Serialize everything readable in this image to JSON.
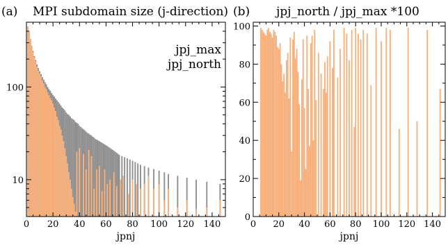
{
  "chart_data": [
    {
      "type": "bar",
      "panel_label": "(a)",
      "title": "MPI subdomain size (j-direction)",
      "xlabel": "jpnj",
      "ylabel": "",
      "yscale": "log",
      "xlim": [
        0,
        150
      ],
      "ylim": [
        4,
        500
      ],
      "xticks": [
        0,
        20,
        40,
        60,
        80,
        100,
        120,
        140
      ],
      "yticks": [
        10,
        100
      ],
      "legend_position": "top-right",
      "colors": {
        "jpj_max": "#8f8f8f",
        "jpj_north": "#f7b07c"
      },
      "series": [
        {
          "name": "jpj_max",
          "points": [
            [
              1,
              450
            ],
            [
              2,
              400
            ],
            [
              3,
              330
            ],
            [
              4,
              280
            ],
            [
              5,
              245
            ],
            [
              6,
              215
            ],
            [
              7,
              195
            ],
            [
              8,
              175
            ],
            [
              9,
              160
            ],
            [
              10,
              148
            ],
            [
              11,
              138
            ],
            [
              12,
              128
            ],
            [
              13,
              120
            ],
            [
              14,
              113
            ],
            [
              15,
              107
            ],
            [
              16,
              100
            ],
            [
              17,
              95
            ],
            [
              18,
              91
            ],
            [
              19,
              86
            ],
            [
              20,
              82
            ],
            [
              21,
              79
            ],
            [
              22,
              75
            ],
            [
              23,
              72
            ],
            [
              24,
              69
            ],
            [
              25,
              66
            ],
            [
              26,
              63
            ],
            [
              27,
              60
            ],
            [
              28,
              58
            ],
            [
              29,
              56
            ],
            [
              30,
              53
            ],
            [
              31,
              51
            ],
            [
              32,
              50
            ],
            [
              33,
              48
            ],
            [
              34,
              46
            ],
            [
              35,
              45
            ],
            [
              36,
              44
            ],
            [
              37,
              42
            ],
            [
              38,
              41
            ],
            [
              39,
              40
            ],
            [
              40,
              38
            ],
            [
              41,
              37
            ],
            [
              42,
              36
            ],
            [
              43,
              35
            ],
            [
              44,
              34
            ],
            [
              45,
              33
            ],
            [
              46,
              32
            ],
            [
              47,
              31.5
            ],
            [
              48,
              30.5
            ],
            [
              49,
              30
            ],
            [
              50,
              29
            ],
            [
              51,
              28.5
            ],
            [
              52,
              27.5
            ],
            [
              53,
              27
            ],
            [
              54,
              26.5
            ],
            [
              55,
              26
            ],
            [
              56,
              25.5
            ],
            [
              57,
              25
            ],
            [
              58,
              24.5
            ],
            [
              59,
              24
            ],
            [
              60,
              23.5
            ],
            [
              61,
              23
            ],
            [
              62,
              22.5
            ],
            [
              63,
              22
            ],
            [
              64,
              21.5
            ],
            [
              65,
              21
            ],
            [
              66,
              20.5
            ],
            [
              67,
              20
            ],
            [
              68,
              19.5
            ],
            [
              69,
              19
            ],
            [
              70,
              18.5
            ],
            [
              72,
              18
            ],
            [
              74,
              17.5
            ],
            [
              76,
              17
            ],
            [
              78,
              16.5
            ],
            [
              80,
              16
            ],
            [
              82,
              15.5
            ],
            [
              84,
              15
            ],
            [
              86,
              14.5
            ],
            [
              89,
              14
            ],
            [
              92,
              13.5
            ],
            [
              96,
              13
            ],
            [
              100,
              12.5
            ],
            [
              104,
              12
            ],
            [
              107,
              11.5
            ],
            [
              114,
              11
            ],
            [
              121,
              10.5
            ],
            [
              128,
              10
            ],
            [
              136,
              9.5
            ],
            [
              146,
              9
            ]
          ]
        },
        {
          "name": "jpj_north",
          "points": [
            [
              1,
              450
            ],
            [
              2,
              400
            ],
            [
              3,
              330
            ],
            [
              4,
              280
            ],
            [
              5,
              240
            ],
            [
              6,
              210
            ],
            [
              7,
              190
            ],
            [
              8,
              165
            ],
            [
              9,
              150
            ],
            [
              10,
              140
            ],
            [
              11,
              130
            ],
            [
              12,
              118
            ],
            [
              13,
              110
            ],
            [
              14,
              100
            ],
            [
              15,
              95
            ],
            [
              16,
              88
            ],
            [
              17,
              82
            ],
            [
              18,
              76
            ],
            [
              19,
              72
            ],
            [
              20,
              66
            ],
            [
              21,
              60
            ],
            [
              22,
              55
            ],
            [
              23,
              48
            ],
            [
              24,
              44
            ],
            [
              25,
              38
            ],
            [
              26,
              35
            ],
            [
              27,
              30
            ],
            [
              28,
              26
            ],
            [
              29,
              22
            ],
            [
              30,
              18
            ],
            [
              31,
              15
            ],
            [
              32,
              12
            ],
            [
              33,
              10
            ],
            [
              34,
              8
            ],
            [
              35,
              6.5
            ],
            [
              36,
              5.5
            ],
            [
              37,
              4.5
            ],
            [
              38,
              20
            ],
            [
              40,
              22
            ],
            [
              43,
              19
            ],
            [
              45,
              13
            ],
            [
              47,
              21
            ],
            [
              49,
              18
            ],
            [
              51,
              8
            ],
            [
              53,
              13
            ],
            [
              55,
              14
            ],
            [
              57,
              7.5
            ],
            [
              59,
              13
            ],
            [
              61,
              9
            ],
            [
              63,
              10
            ],
            [
              66,
              12
            ],
            [
              68,
              8.5
            ],
            [
              71,
              10
            ],
            [
              73,
              11
            ],
            [
              77,
              7
            ],
            [
              80,
              10
            ],
            [
              83,
              9
            ],
            [
              86,
              8
            ],
            [
              89,
              9
            ],
            [
              92,
              11
            ],
            [
              96,
              8
            ],
            [
              100,
              9
            ],
            [
              104,
              6
            ],
            [
              107,
              8
            ],
            [
              114,
              5
            ],
            [
              121,
              6
            ],
            [
              128,
              4.8
            ],
            [
              136,
              5
            ],
            [
              146,
              6
            ]
          ]
        }
      ]
    },
    {
      "type": "bar",
      "panel_label": "(b)",
      "title": "jpj_north / jpj_max *100",
      "xlabel": "jpnj",
      "ylabel": "",
      "xlim": [
        0,
        150
      ],
      "ylim": [
        0,
        102
      ],
      "xticks": [
        0,
        20,
        40,
        60,
        80,
        100,
        120,
        140
      ],
      "yticks": [
        0,
        20,
        40,
        60,
        80,
        100
      ],
      "colors": {
        "bar": "#f7b07c"
      },
      "series": [
        {
          "name": "",
          "points": [
            [
              6,
              99
            ],
            [
              7,
              98
            ],
            [
              8,
              97
            ],
            [
              9,
              96
            ],
            [
              10,
              95
            ],
            [
              11,
              98
            ],
            [
              12,
              99
            ],
            [
              13,
              97
            ],
            [
              14,
              96
            ],
            [
              15,
              94
            ],
            [
              16,
              98
            ],
            [
              17,
              97
            ],
            [
              18,
              95
            ],
            [
              19,
              89
            ],
            [
              20,
              88
            ],
            [
              21,
              91
            ],
            [
              22,
              80
            ],
            [
              23,
              71
            ],
            [
              24,
              75
            ],
            [
              25,
              65
            ],
            [
              26,
              82
            ],
            [
              27,
              86
            ],
            [
              28,
              62
            ],
            [
              29,
              94
            ],
            [
              30,
              34
            ],
            [
              31,
              93
            ],
            [
              32,
              97
            ],
            [
              33,
              83
            ],
            [
              34,
              88
            ],
            [
              35,
              76
            ],
            [
              36,
              59
            ],
            [
              37,
              19
            ],
            [
              38,
              72
            ],
            [
              39,
              93
            ],
            [
              40,
              57
            ],
            [
              41,
              25
            ],
            [
              42,
              95
            ],
            [
              43,
              67
            ],
            [
              44,
              37
            ],
            [
              45,
              91
            ],
            [
              46,
              95
            ],
            [
              47,
              40
            ],
            [
              48,
              98
            ],
            [
              49,
              61
            ],
            [
              51,
              86
            ],
            [
              53,
              75
            ],
            [
              55,
              67
            ],
            [
              56,
              81
            ],
            [
              57,
              65
            ],
            [
              58,
              84
            ],
            [
              60,
              92
            ],
            [
              62,
              78
            ],
            [
              63,
              98
            ],
            [
              66,
              73
            ],
            [
              68,
              88
            ],
            [
              71,
              99
            ],
            [
              73,
              96
            ],
            [
              75,
              82
            ],
            [
              77,
              98
            ],
            [
              79,
              47
            ],
            [
              80,
              99
            ],
            [
              82,
              96
            ],
            [
              84,
              93
            ],
            [
              86,
              98
            ],
            [
              89,
              96
            ],
            [
              92,
              69
            ],
            [
              96,
              99
            ],
            [
              100,
              92
            ],
            [
              104,
              99
            ],
            [
              107,
              98
            ],
            [
              114,
              46
            ],
            [
              121,
              99
            ],
            [
              128,
              50
            ],
            [
              136,
              98
            ],
            [
              146,
              67
            ]
          ]
        }
      ]
    }
  ]
}
